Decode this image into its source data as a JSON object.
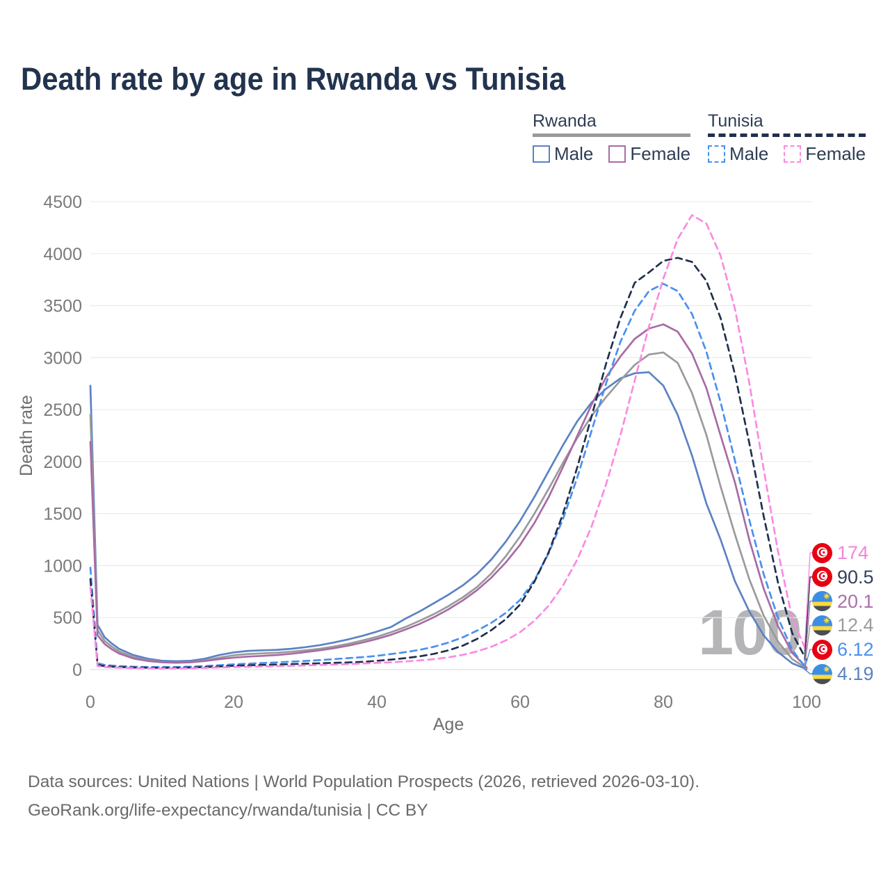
{
  "title": "Death rate by age in Rwanda vs Tunisia",
  "legend": {
    "groups": [
      {
        "title": "Rwanda",
        "line_style": "solid",
        "underline_color": "#9a9a9c",
        "items": [
          {
            "label": "Male",
            "color": "#5b82c4"
          },
          {
            "label": "Female",
            "color": "#a86ba4"
          }
        ]
      },
      {
        "title": "Tunisia",
        "line_style": "dashed",
        "underline_color": "#20304d",
        "items": [
          {
            "label": "Male",
            "color": "#4a90ee"
          },
          {
            "label": "Female",
            "color": "#fb8ae2"
          }
        ]
      }
    ]
  },
  "axes": {
    "x": {
      "label": "Age",
      "ticks": [
        0,
        20,
        40,
        60,
        80,
        100
      ],
      "range": [
        0,
        100
      ]
    },
    "y": {
      "label": "Death rate",
      "ticks": [
        0,
        500,
        1000,
        1500,
        2000,
        2500,
        3000,
        3500,
        4000,
        4500
      ],
      "range": [
        0,
        4500
      ]
    }
  },
  "hover_age_watermark": "100",
  "chart_data": {
    "type": "line",
    "title": "Death rate by age in Rwanda vs Tunisia",
    "xlabel": "Age",
    "ylabel": "Death rate",
    "xlim": [
      0,
      100
    ],
    "ylim": [
      0,
      4500
    ],
    "grid": "horizontal-only",
    "legend_position": "top-right",
    "x": [
      0,
      1,
      2,
      3,
      4,
      6,
      8,
      10,
      12,
      14,
      16,
      18,
      20,
      22,
      24,
      26,
      28,
      30,
      32,
      34,
      36,
      38,
      40,
      42,
      44,
      46,
      48,
      50,
      52,
      54,
      56,
      58,
      60,
      62,
      64,
      66,
      68,
      70,
      72,
      74,
      76,
      78,
      80,
      82,
      84,
      86,
      88,
      90,
      92,
      94,
      96,
      98,
      100
    ],
    "series": [
      {
        "name": "Rwanda Male",
        "country": "Rwanda",
        "sex": "Male",
        "color": "#5b82c4",
        "dash": "solid",
        "values": [
          2730,
          430,
          310,
          250,
          200,
          140,
          105,
          85,
          80,
          85,
          105,
          140,
          165,
          180,
          185,
          190,
          200,
          215,
          235,
          260,
          290,
          325,
          365,
          410,
          490,
          560,
          640,
          720,
          810,
          920,
          1060,
          1230,
          1430,
          1660,
          1910,
          2160,
          2390,
          2570,
          2700,
          2800,
          2850,
          2860,
          2730,
          2450,
          2060,
          1600,
          1250,
          850,
          560,
          330,
          170,
          60,
          4.19
        ],
        "end_value": "4.19"
      },
      {
        "name": "Rwanda Both sexes",
        "country": "Rwanda",
        "sex": "Both",
        "color": "#9a9a9c",
        "dash": "solid",
        "values": [
          2450,
          380,
          275,
          220,
          175,
          120,
          90,
          73,
          68,
          72,
          88,
          115,
          138,
          150,
          156,
          162,
          172,
          185,
          200,
          222,
          248,
          280,
          315,
          360,
          410,
          470,
          535,
          610,
          695,
          795,
          925,
          1090,
          1280,
          1500,
          1740,
          1990,
          2230,
          2440,
          2620,
          2780,
          2930,
          3030,
          3050,
          2950,
          2660,
          2260,
          1760,
          1300,
          870,
          520,
          270,
          100,
          12.4
        ],
        "end_value": "12.4"
      },
      {
        "name": "Rwanda Female",
        "country": "Rwanda",
        "sex": "Female",
        "color": "#a86ba4",
        "dash": "solid",
        "values": [
          2190,
          330,
          245,
          195,
          155,
          107,
          83,
          70,
          66,
          70,
          82,
          100,
          115,
          125,
          132,
          140,
          152,
          168,
          185,
          205,
          230,
          260,
          295,
          335,
          385,
          440,
          505,
          580,
          665,
          765,
          885,
          1030,
          1200,
          1410,
          1660,
          1950,
          2250,
          2550,
          2810,
          3010,
          3180,
          3280,
          3320,
          3250,
          3040,
          2710,
          2250,
          1800,
          1250,
          780,
          420,
          160,
          20.1
        ],
        "end_value": "20.1"
      },
      {
        "name": "Tunisia Male",
        "country": "Tunisia",
        "sex": "Male",
        "color": "#4a90ee",
        "dash": "dashed",
        "values": [
          980,
          62,
          45,
          39,
          34,
          28,
          25,
          24,
          25,
          28,
          34,
          42,
          50,
          57,
          63,
          69,
          76,
          83,
          91,
          100,
          110,
          120,
          132,
          150,
          168,
          190,
          220,
          260,
          310,
          375,
          450,
          545,
          670,
          860,
          1120,
          1450,
          1850,
          2300,
          2750,
          3150,
          3450,
          3640,
          3710,
          3640,
          3420,
          3060,
          2570,
          2010,
          1440,
          920,
          500,
          190,
          6.12
        ],
        "end_value": "6.12"
      },
      {
        "name": "Tunisia Both sexes",
        "country": "Tunisia",
        "sex": "Both",
        "color": "#20304d",
        "dash": "dashed",
        "values": [
          870,
          45,
          33,
          28,
          25,
          20,
          18,
          17,
          18,
          20,
          24,
          30,
          36,
          41,
          45,
          49,
          53,
          57,
          61,
          65,
          69,
          74,
          84,
          96,
          110,
          128,
          152,
          185,
          230,
          295,
          380,
          485,
          625,
          845,
          1130,
          1500,
          1950,
          2440,
          2940,
          3380,
          3720,
          3820,
          3930,
          3960,
          3920,
          3740,
          3380,
          2840,
          2180,
          1480,
          840,
          350,
          90.5
        ],
        "end_value": "90.5"
      },
      {
        "name": "Tunisia Female",
        "country": "Tunisia",
        "sex": "Female",
        "color": "#fb8ae2",
        "dash": "dashed",
        "values": [
          790,
          34,
          24,
          20,
          18,
          14,
          12,
          11,
          12,
          13,
          16,
          20,
          24,
          27,
          30,
          33,
          36,
          40,
          44,
          48,
          53,
          58,
          64,
          70,
          78,
          88,
          100,
          118,
          142,
          175,
          220,
          280,
          360,
          470,
          615,
          810,
          1060,
          1380,
          1780,
          2250,
          2780,
          3300,
          3760,
          4140,
          4370,
          4290,
          3980,
          3470,
          2760,
          1930,
          1140,
          490,
          174
        ],
        "end_value": "174"
      }
    ]
  },
  "end_labels": [
    {
      "value": "174",
      "flag": "tunisia",
      "series": "Tunisia Female",
      "text_color": "#f186d9",
      "line_color": "#fb8ae2"
    },
    {
      "value": "90.5",
      "flag": "tunisia",
      "series": "Tunisia Both sexes",
      "text_color": "#32415c",
      "line_color": "#20304d"
    },
    {
      "value": "20.1",
      "flag": "rwanda",
      "series": "Rwanda Female",
      "text_color": "#ac6fa8",
      "line_color": "#a86ba4"
    },
    {
      "value": "12.4",
      "flag": "rwanda",
      "series": "Rwanda Both sexes",
      "text_color": "#9b9b9d",
      "line_color": "#9a9a9c"
    },
    {
      "value": "6.12",
      "flag": "tunisia",
      "series": "Tunisia Male",
      "text_color": "#4a90ee",
      "line_color": "#4a90ee"
    },
    {
      "value": "4.19",
      "flag": "rwanda",
      "series": "Rwanda Male",
      "text_color": "#5b82c4",
      "line_color": "#5b82c4"
    }
  ],
  "colors": {
    "title": "#22334e",
    "axis_text": "#7a7a7c",
    "axis_label": "#6f6f6f",
    "gridline": "#ececee",
    "watermark": "#b5b5b7",
    "footer_text": "#696969"
  },
  "footer": {
    "line1": "Data sources: United Nations | World Population Prospects (2026, retrieved 2026-03-10).",
    "line2": "GeoRank.org/life-expectancy/rwanda/tunisia | CC BY"
  }
}
